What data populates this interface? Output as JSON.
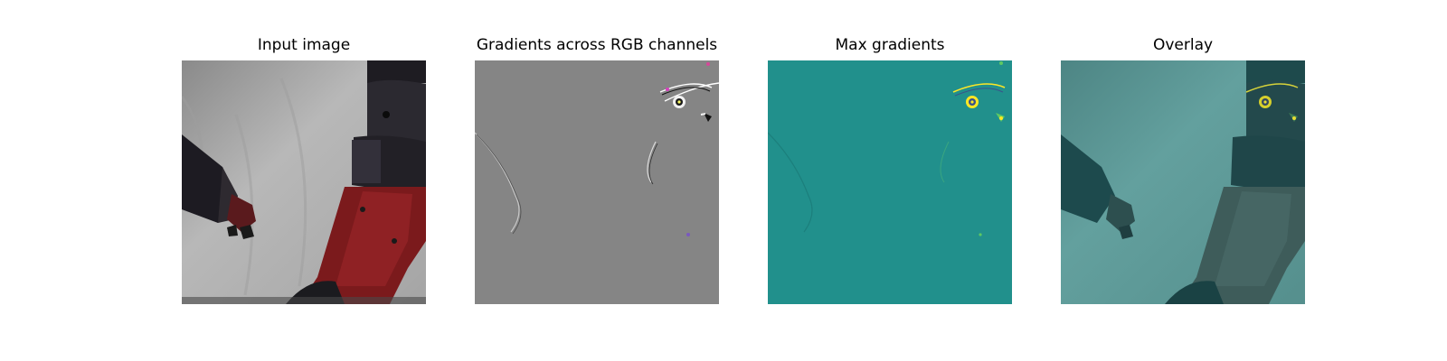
{
  "figure": {
    "panels": [
      {
        "title": "Input image"
      },
      {
        "title": "Gradients across RGB channels"
      },
      {
        "title": "Max gradients"
      },
      {
        "title": "Overlay"
      }
    ]
  },
  "colors": {
    "background": "#ffffff",
    "gradient_gray": "#858585",
    "max_gradient_teal": "#21908c",
    "robot_red": "#8e1e1e",
    "robot_dark": "#2a2830"
  }
}
